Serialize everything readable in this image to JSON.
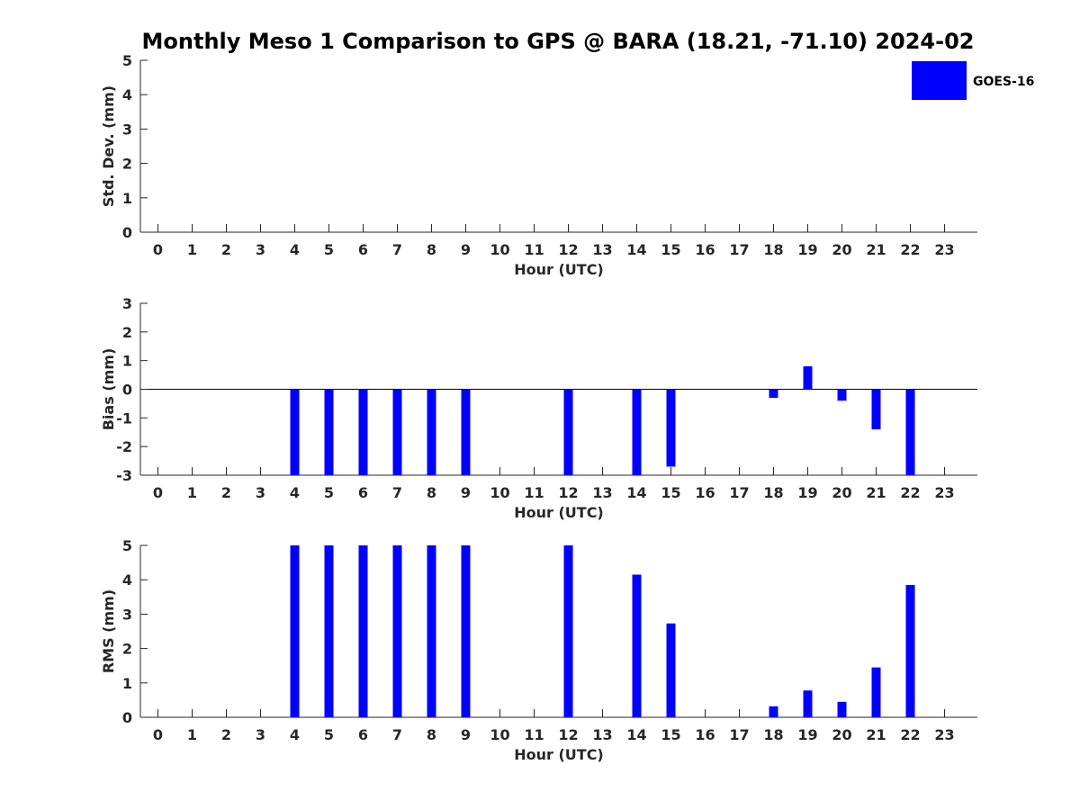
{
  "chart_data": {
    "type": "bar",
    "title": "Monthly Meso 1 Comparison to GPS @ BARA (18.21, -71.10) 2024-02",
    "legend": {
      "placement": "top-right",
      "entries": [
        {
          "name": "GOES-16",
          "color": "#0000ff"
        }
      ]
    },
    "panels": [
      {
        "ylabel": "Std. Dev. (mm)",
        "xlabel": "Hour (UTC)",
        "ylim": [
          0,
          5
        ],
        "yticks": [
          "0",
          "1",
          "2",
          "3",
          "4",
          "5"
        ],
        "xticks": [
          "0",
          "1",
          "2",
          "3",
          "4",
          "5",
          "6",
          "7",
          "8",
          "9",
          "10",
          "11",
          "12",
          "13",
          "14",
          "15",
          "16",
          "17",
          "18",
          "19",
          "20",
          "21",
          "22",
          "23"
        ],
        "series": [
          {
            "name": "GOES-16",
            "values": [
              null,
              null,
              null,
              null,
              null,
              null,
              null,
              null,
              null,
              null,
              null,
              null,
              null,
              null,
              null,
              null,
              null,
              null,
              null,
              null,
              null,
              null,
              null,
              null
            ]
          }
        ]
      },
      {
        "ylabel": "Bias (mm)",
        "xlabel": "Hour (UTC)",
        "ylim": [
          -3,
          3
        ],
        "yticks": [
          "-3",
          "-2",
          "-1",
          "0",
          "1",
          "2",
          "3"
        ],
        "xticks": [
          "0",
          "1",
          "2",
          "3",
          "4",
          "5",
          "6",
          "7",
          "8",
          "9",
          "10",
          "11",
          "12",
          "13",
          "14",
          "15",
          "16",
          "17",
          "18",
          "19",
          "20",
          "21",
          "22",
          "23"
        ],
        "zero_line": true,
        "series": [
          {
            "name": "GOES-16",
            "values": [
              null,
              null,
              null,
              null,
              -3,
              -3,
              -3,
              -3,
              -3,
              -3,
              null,
              null,
              -3,
              null,
              -3,
              -2.7,
              null,
              null,
              -0.3,
              0.8,
              -0.4,
              -1.4,
              -3,
              null
            ]
          }
        ]
      },
      {
        "ylabel": "RMS (mm)",
        "xlabel": "Hour (UTC)",
        "ylim": [
          0,
          5
        ],
        "yticks": [
          "0",
          "1",
          "2",
          "3",
          "4",
          "5"
        ],
        "xticks": [
          "0",
          "1",
          "2",
          "3",
          "4",
          "5",
          "6",
          "7",
          "8",
          "9",
          "10",
          "11",
          "12",
          "13",
          "14",
          "15",
          "16",
          "17",
          "18",
          "19",
          "20",
          "21",
          "22",
          "23"
        ],
        "series": [
          {
            "name": "GOES-16",
            "values": [
              null,
              null,
              null,
              null,
              5,
              5,
              5,
              5,
              5,
              5,
              null,
              null,
              5,
              null,
              4.15,
              2.73,
              null,
              null,
              0.32,
              0.78,
              0.45,
              1.45,
              3.85,
              null
            ]
          }
        ]
      }
    ]
  }
}
